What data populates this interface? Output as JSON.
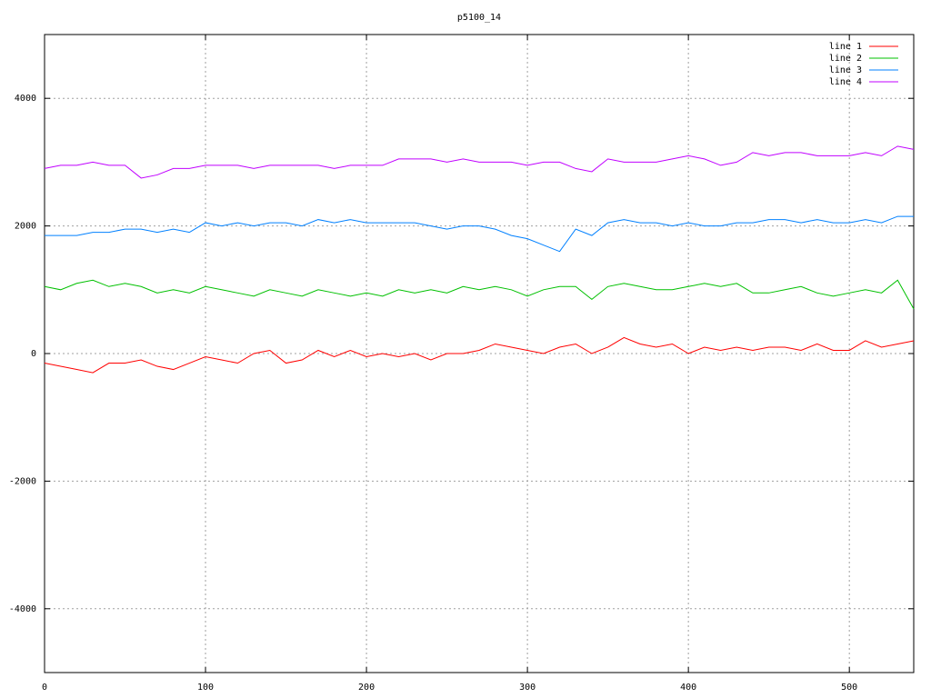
{
  "chart_data": {
    "type": "line",
    "title": "p5100_14",
    "x": [
      0,
      10,
      20,
      30,
      40,
      50,
      60,
      70,
      80,
      90,
      100,
      110,
      120,
      130,
      140,
      150,
      160,
      170,
      180,
      190,
      200,
      210,
      220,
      230,
      240,
      250,
      260,
      270,
      280,
      290,
      300,
      310,
      320,
      330,
      340,
      350,
      360,
      370,
      380,
      390,
      400,
      410,
      420,
      430,
      440,
      450,
      460,
      470,
      480,
      490,
      500,
      510,
      520,
      530,
      540
    ],
    "series": [
      {
        "name": "line 1",
        "color": "#ff0000",
        "values": [
          -150,
          -200,
          -250,
          -300,
          -150,
          -150,
          -100,
          -200,
          -250,
          -150,
          -50,
          -100,
          -150,
          0,
          50,
          -150,
          -100,
          50,
          -50,
          50,
          -50,
          0,
          -50,
          0,
          -100,
          0,
          0,
          50,
          150,
          100,
          50,
          0,
          100,
          150,
          0,
          100,
          250,
          150,
          100,
          150,
          0,
          100,
          50,
          100,
          50,
          100,
          100,
          50,
          150,
          50,
          50,
          200,
          100,
          150,
          200
        ]
      },
      {
        "name": "line 2",
        "color": "#00c000",
        "values": [
          1050,
          1000,
          1100,
          1150,
          1050,
          1100,
          1050,
          950,
          1000,
          950,
          1050,
          1000,
          950,
          900,
          1000,
          950,
          900,
          1000,
          950,
          900,
          950,
          900,
          1000,
          950,
          1000,
          950,
          1050,
          1000,
          1050,
          1000,
          900,
          1000,
          1050,
          1050,
          850,
          1050,
          1100,
          1050,
          1000,
          1000,
          1050,
          1100,
          1050,
          1100,
          950,
          950,
          1000,
          1050,
          950,
          900,
          950,
          1000,
          950,
          1150,
          700
        ]
      },
      {
        "name": "line 3",
        "color": "#0080ff",
        "values": [
          1850,
          1850,
          1850,
          1900,
          1900,
          1950,
          1950,
          1900,
          1950,
          1900,
          2050,
          2000,
          2050,
          2000,
          2050,
          2050,
          2000,
          2100,
          2050,
          2100,
          2050,
          2050,
          2050,
          2050,
          2000,
          1950,
          2000,
          2000,
          1950,
          1850,
          1800,
          1700,
          1600,
          1950,
          1850,
          2050,
          2100,
          2050,
          2050,
          2000,
          2050,
          2000,
          2000,
          2050,
          2050,
          2100,
          2100,
          2050,
          2100,
          2050,
          2050,
          2100,
          2050,
          2150,
          2150
        ]
      },
      {
        "name": "line 4",
        "color": "#c000ff",
        "values": [
          2900,
          2950,
          2950,
          3000,
          2950,
          2950,
          2750,
          2800,
          2900,
          2900,
          2950,
          2950,
          2950,
          2900,
          2950,
          2950,
          2950,
          2950,
          2900,
          2950,
          2950,
          2950,
          3050,
          3050,
          3050,
          3000,
          3050,
          3000,
          3000,
          3000,
          2950,
          3000,
          3000,
          2900,
          2850,
          3050,
          3000,
          3000,
          3000,
          3050,
          3100,
          3050,
          2950,
          3000,
          3150,
          3100,
          3150,
          3150,
          3100,
          3100,
          3100,
          3150,
          3100,
          3250,
          3200
        ]
      }
    ],
    "xlim": [
      0,
      540
    ],
    "ylim": [
      -5000,
      5000
    ],
    "xticks": [
      0,
      100,
      200,
      300,
      400,
      500
    ],
    "yticks": [
      -4000,
      -2000,
      0,
      2000,
      4000
    ],
    "grid": true,
    "legend": "top-right"
  }
}
